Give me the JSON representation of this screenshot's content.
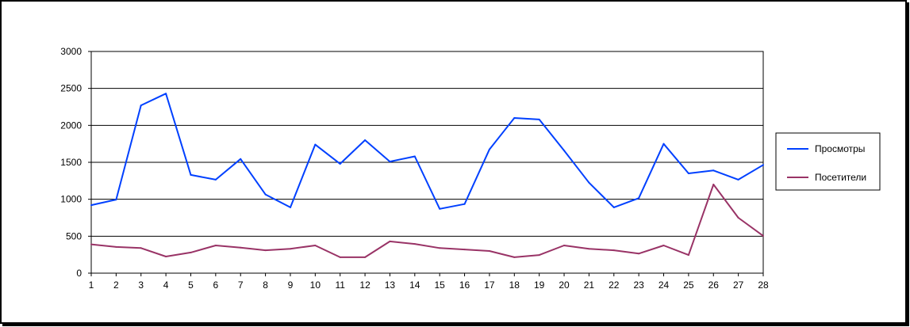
{
  "chart_data": {
    "type": "line",
    "x": [
      1,
      2,
      3,
      4,
      5,
      6,
      7,
      8,
      9,
      10,
      11,
      12,
      13,
      14,
      15,
      16,
      17,
      18,
      19,
      20,
      21,
      22,
      23,
      24,
      25,
      26,
      27,
      28
    ],
    "series": [
      {
        "name": "Просмотры",
        "color": "#0040ff",
        "values": [
          920,
          995,
          2270,
          2430,
          1330,
          1265,
          1545,
          1065,
          890,
          1740,
          1480,
          1800,
          1510,
          1580,
          870,
          935,
          1675,
          2100,
          2080,
          1660,
          1225,
          890,
          1015,
          1750,
          1350,
          1390,
          1265,
          1465
        ]
      },
      {
        "name": "Посетители",
        "color": "#993366",
        "values": [
          390,
          355,
          340,
          225,
          280,
          375,
          345,
          310,
          330,
          375,
          215,
          215,
          430,
          395,
          340,
          320,
          300,
          215,
          245,
          375,
          330,
          310,
          265,
          375,
          245,
          1200,
          750,
          505
        ]
      }
    ],
    "ylim": [
      0,
      3000
    ],
    "yticks": [
      0,
      500,
      1000,
      1500,
      2000,
      2500,
      3000
    ],
    "grid": true,
    "legend_position": "right"
  }
}
